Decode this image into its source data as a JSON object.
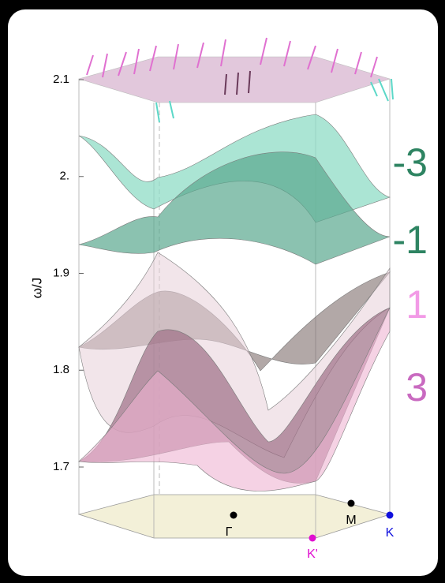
{
  "axis": {
    "label": "ω/J",
    "ticks": [
      2.1,
      {
        "value": 2,
        "label": "2."
      },
      1.9,
      1.8,
      1.7
    ]
  },
  "band_labels": [
    {
      "text": "-3",
      "color": "#2e8462"
    },
    {
      "text": "-1",
      "color": "#2e8462"
    },
    {
      "text": "1",
      "color": "#f29ae6"
    },
    {
      "text": "3",
      "color": "#c96ac0"
    }
  ],
  "points": [
    {
      "label": "Γ",
      "color": "#000000"
    },
    {
      "label": "M",
      "color": "#000000"
    },
    {
      "label": "K",
      "color": "#1010dd"
    },
    {
      "label": "K'",
      "color": "#e010d0"
    }
  ]
}
